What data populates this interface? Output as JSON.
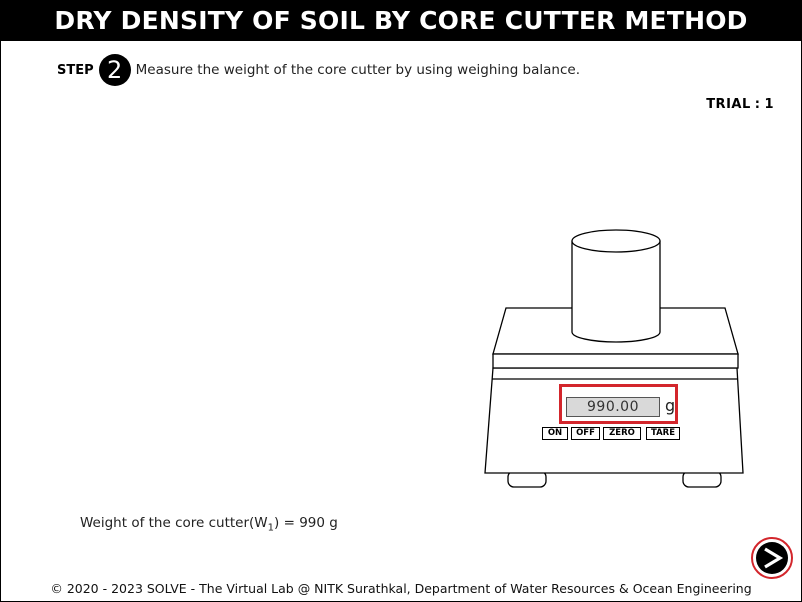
{
  "header": {
    "title": "DRY DENSITY OF SOIL BY CORE CUTTER METHOD"
  },
  "step": {
    "word": "STEP",
    "number": "2",
    "instruction": "Measure the weight of the core cutter by using weighing balance."
  },
  "trial": {
    "label": "TRIAL",
    "separator": ":",
    "value": "1"
  },
  "balance": {
    "reading": "990.00",
    "unit": "g",
    "buttons": {
      "on": "ON",
      "off": "OFF",
      "zero": "ZERO",
      "tare": "TARE"
    }
  },
  "result": {
    "prefix": "Weight of the core cutter(W",
    "subscript": "1",
    "suffix": ") = 990 g"
  },
  "footer": {
    "text": "© 2020 - 2023 SOLVE - The Virtual Lab @ NITK Surathkal, Department of Water Resources & Ocean Engineering"
  },
  "colors": {
    "highlight": "#d3262c",
    "lcd": "#d9d9d9",
    "title_bg": "#000000"
  },
  "icons": {
    "next": "next-arrow-icon"
  }
}
